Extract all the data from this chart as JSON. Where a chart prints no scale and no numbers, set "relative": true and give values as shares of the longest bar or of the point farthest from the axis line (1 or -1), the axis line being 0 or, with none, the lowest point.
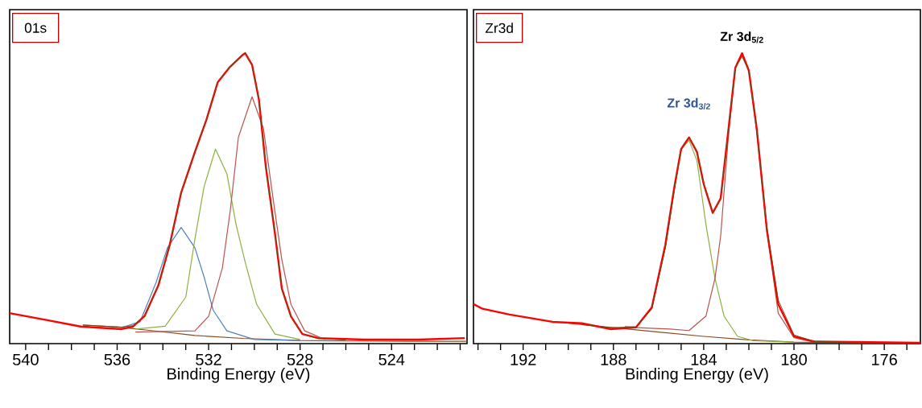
{
  "chart_data": [
    {
      "type": "line",
      "title": "01s",
      "xlabel": "Binding Energy (eV)",
      "relative": true,
      "tick_labels": "x",
      "xlim": [
        540.7,
        520.7
      ],
      "xticks": [
        540,
        {
          "value": 539,
          "label": null
        },
        {
          "value": 538,
          "label": null
        },
        {
          "value": 537,
          "label": null
        },
        536,
        {
          "value": 535,
          "label": null
        },
        {
          "value": 534,
          "label": null
        },
        {
          "value": 533,
          "label": null
        },
        532,
        {
          "value": 531,
          "label": null
        },
        {
          "value": 530,
          "label": null
        },
        {
          "value": 529,
          "label": null
        },
        528,
        {
          "value": 527,
          "label": null
        },
        {
          "value": 526,
          "label": null
        },
        {
          "value": 525,
          "label": null
        },
        524,
        {
          "value": 523,
          "label": null
        },
        {
          "value": 522,
          "label": null
        },
        {
          "value": 521,
          "label": null
        }
      ],
      "series": [
        {
          "color": "#8b4a1c",
          "x": [
            537.5,
            536,
            534.5,
            532.6,
            530.5,
            528,
            526,
            523,
            520.7
          ],
          "values": [
            0.064,
            0.057,
            0.045,
            0.028,
            0.018,
            0.011,
            0.009,
            0.008,
            0.008
          ]
        },
        {
          "color": "#4f81bd",
          "x": [
            535.8,
            535.0,
            534.3,
            533.8,
            533.2,
            532.6,
            532.2,
            531.8,
            531.2,
            530.0,
            528.0
          ],
          "values": [
            0.055,
            0.075,
            0.21,
            0.33,
            0.4,
            0.33,
            0.23,
            0.115,
            0.044,
            0.014,
            0.011
          ]
        },
        {
          "color": "#8cb040",
          "x": [
            535.2,
            533.9,
            533.0,
            532.6,
            532.2,
            531.7,
            531.2,
            530.8,
            530.4,
            529.9,
            529.1,
            528.0
          ],
          "values": [
            0.05,
            0.06,
            0.16,
            0.36,
            0.54,
            0.67,
            0.585,
            0.41,
            0.28,
            0.135,
            0.033,
            0.014
          ]
        },
        {
          "color": "#b85450",
          "x": [
            535.2,
            532.6,
            532.0,
            531.4,
            531.05,
            530.7,
            530.1,
            529.6,
            529.2,
            528.8,
            528.4,
            527.8,
            526.9
          ],
          "values": [
            0.04,
            0.044,
            0.094,
            0.26,
            0.46,
            0.71,
            0.85,
            0.74,
            0.51,
            0.29,
            0.135,
            0.044,
            0.014
          ]
        },
        {
          "color": "#ff0000",
          "x": [
            540.7,
            539.0,
            537.6,
            535.8,
            535.3,
            534.8,
            534.2,
            533.7,
            533.2,
            532.6,
            532.1,
            531.6,
            531.1,
            530.5,
            530.4,
            530.1,
            529.8,
            529.5,
            529.1,
            528.8,
            528.4,
            527.9,
            527.2,
            525.2,
            522.8,
            520.8
          ],
          "values": [
            0.105,
            0.08,
            0.059,
            0.05,
            0.059,
            0.095,
            0.2,
            0.34,
            0.52,
            0.66,
            0.77,
            0.9,
            0.95,
            0.995,
            1.0,
            0.96,
            0.84,
            0.61,
            0.38,
            0.19,
            0.094,
            0.033,
            0.019,
            0.014,
            0.014,
            0.019
          ]
        },
        {
          "color": "#6e4b1e",
          "x": [
            537.5,
            535.8,
            535.3,
            534.8,
            534.2,
            533.7,
            533.2,
            532.6,
            532.1,
            531.6,
            531.1,
            530.5,
            530.4,
            530.1,
            529.8,
            529.5,
            529.1,
            528.8,
            528.4,
            527.9,
            527.2,
            526
          ],
          "values": [
            0.064,
            0.057,
            0.062,
            0.095,
            0.2,
            0.34,
            0.52,
            0.66,
            0.77,
            0.9,
            0.95,
            0.995,
            1.0,
            0.96,
            0.84,
            0.61,
            0.38,
            0.19,
            0.094,
            0.033,
            0.017,
            0.012
          ]
        }
      ]
    },
    {
      "type": "line",
      "title": "Zr3d",
      "xlabel": "Binding Energy (eV)",
      "relative": true,
      "tick_labels": "x",
      "xlim": [
        194.2,
        174.4
      ],
      "xticks": [
        {
          "value": 194,
          "label": null
        },
        {
          "value": 193,
          "label": null
        },
        192,
        {
          "value": 191,
          "label": null
        },
        {
          "value": 190,
          "label": null
        },
        {
          "value": 189,
          "label": null
        },
        188,
        {
          "value": 187,
          "label": null
        },
        {
          "value": 186,
          "label": null
        },
        {
          "value": 185,
          "label": null
        },
        184,
        {
          "value": 183,
          "label": null
        },
        {
          "value": 182,
          "label": null
        },
        {
          "value": 181,
          "label": null
        },
        180,
        {
          "value": 179,
          "label": null
        },
        {
          "value": 178,
          "label": null
        },
        {
          "value": 177,
          "label": null
        },
        176,
        {
          "value": 175,
          "label": null
        }
      ],
      "annotations": [
        {
          "text": "Zr 3d$_{5/2}$",
          "x": 182.3,
          "y": 1.0
        },
        {
          "text": "Zr 3d$_{3/2}$",
          "x": 184.65,
          "y": 0.71
        }
      ],
      "series": [
        {
          "color": "#8b4a1c",
          "x": [
            190.0,
            188,
            186,
            184,
            182,
            180,
            178,
            174.4
          ],
          "values": [
            0.07,
            0.055,
            0.04,
            0.025,
            0.013,
            0.005,
            0.004,
            0.003
          ]
        },
        {
          "color": "#8cb040",
          "x": [
            187.5,
            187.0,
            186.3,
            185.7,
            185.3,
            185.0,
            184.65,
            184.3,
            183.9,
            183.5,
            183.1,
            182.5,
            181.8,
            180.0
          ],
          "values": [
            0.06,
            0.056,
            0.12,
            0.33,
            0.53,
            0.67,
            0.7,
            0.63,
            0.41,
            0.225,
            0.095,
            0.025,
            0.01,
            0.005
          ]
        },
        {
          "color": "#b85450",
          "x": [
            187.0,
            185.5,
            184.65,
            183.9,
            183.5,
            183.25,
            182.9,
            182.6,
            182.3,
            182.0,
            181.65,
            181.2,
            180.7,
            180.0,
            179.1,
            177
          ],
          "values": [
            0.055,
            0.05,
            0.045,
            0.095,
            0.225,
            0.37,
            0.72,
            0.95,
            0.99,
            0.94,
            0.73,
            0.39,
            0.105,
            0.02,
            0.005,
            0.004
          ]
        },
        {
          "color": "#ff0000",
          "x": [
            194.2,
            193.8,
            192.6,
            190.7,
            189.4,
            188.1,
            187.0,
            186.3,
            185.7,
            185.3,
            185.0,
            184.65,
            184.3,
            184.0,
            183.6,
            183.25,
            182.9,
            182.6,
            182.3,
            182.0,
            181.65,
            181.2,
            180.7,
            180.0,
            179.1,
            174.4
          ],
          "values": [
            0.136,
            0.12,
            0.1,
            0.075,
            0.07,
            0.05,
            0.056,
            0.125,
            0.34,
            0.54,
            0.67,
            0.71,
            0.66,
            0.55,
            0.45,
            0.5,
            0.74,
            0.95,
            1.0,
            0.94,
            0.74,
            0.39,
            0.136,
            0.025,
            0.007,
            0.003
          ]
        },
        {
          "color": "#6e4b1e",
          "x": [
            189.4,
            188.1,
            187.0,
            186.3,
            185.7,
            185.3,
            185.0,
            184.65,
            184.3,
            184.0,
            183.6,
            183.25,
            182.9,
            182.6,
            182.3,
            182.0,
            181.65,
            181.2,
            180.7,
            180.0,
            179.1,
            177
          ],
          "values": [
            0.065,
            0.055,
            0.058,
            0.12,
            0.33,
            0.53,
            0.67,
            0.71,
            0.66,
            0.55,
            0.45,
            0.5,
            0.74,
            0.95,
            0.99,
            0.94,
            0.74,
            0.4,
            0.15,
            0.03,
            0.007,
            0.004
          ]
        }
      ]
    }
  ]
}
